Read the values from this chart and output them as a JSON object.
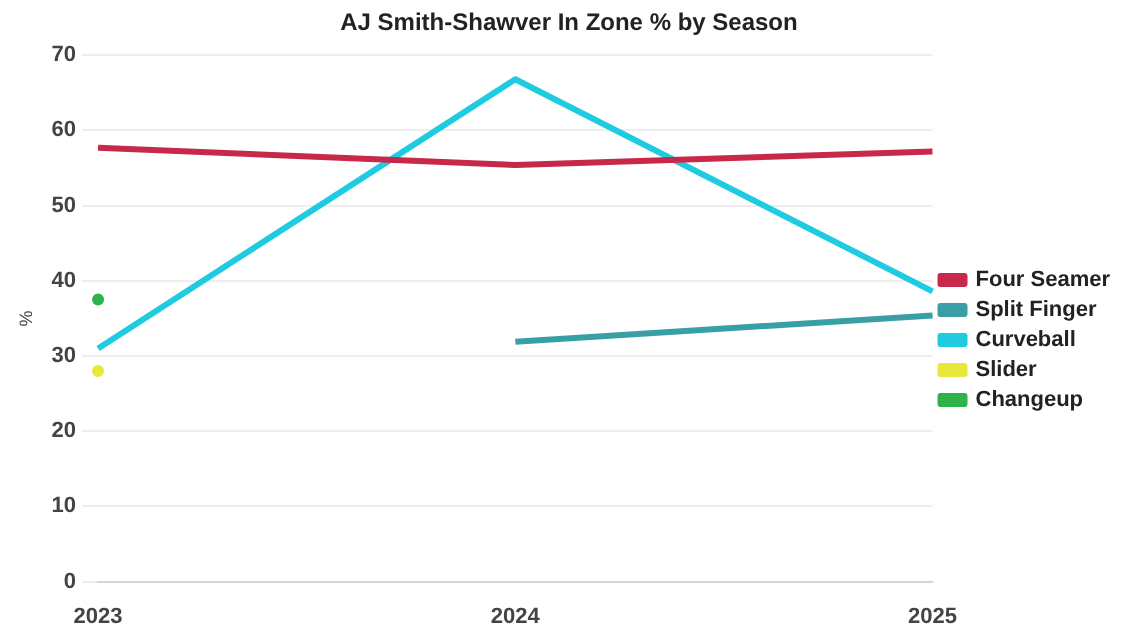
{
  "chart_data": {
    "type": "line",
    "title": "AJ Smith-Shawver In Zone % by Season",
    "ylabel": "%",
    "categories": [
      "2023",
      "2024",
      "2025"
    ],
    "series": [
      {
        "name": "Four Seamer",
        "color": "#c8284a",
        "values": [
          57.7,
          55.4,
          57.2
        ]
      },
      {
        "name": "Split Finger",
        "color": "#3a9ea5",
        "values": [
          null,
          31.9,
          35.4
        ]
      },
      {
        "name": "Curveball",
        "color": "#1ecbe1",
        "values": [
          31,
          66.8,
          38.6
        ]
      },
      {
        "name": "Slider",
        "color": "#e8e83a",
        "marker": "circle",
        "values": [
          28,
          null,
          null
        ]
      },
      {
        "name": "Changeup",
        "color": "#2db34a",
        "marker": "circle",
        "values": [
          37.5,
          null,
          null
        ]
      }
    ],
    "ylim": [
      0,
      70
    ],
    "yticks": [
      0,
      10,
      20,
      30,
      40,
      50,
      60,
      70
    ],
    "grid": "y",
    "legend": "right",
    "marker": "none"
  }
}
